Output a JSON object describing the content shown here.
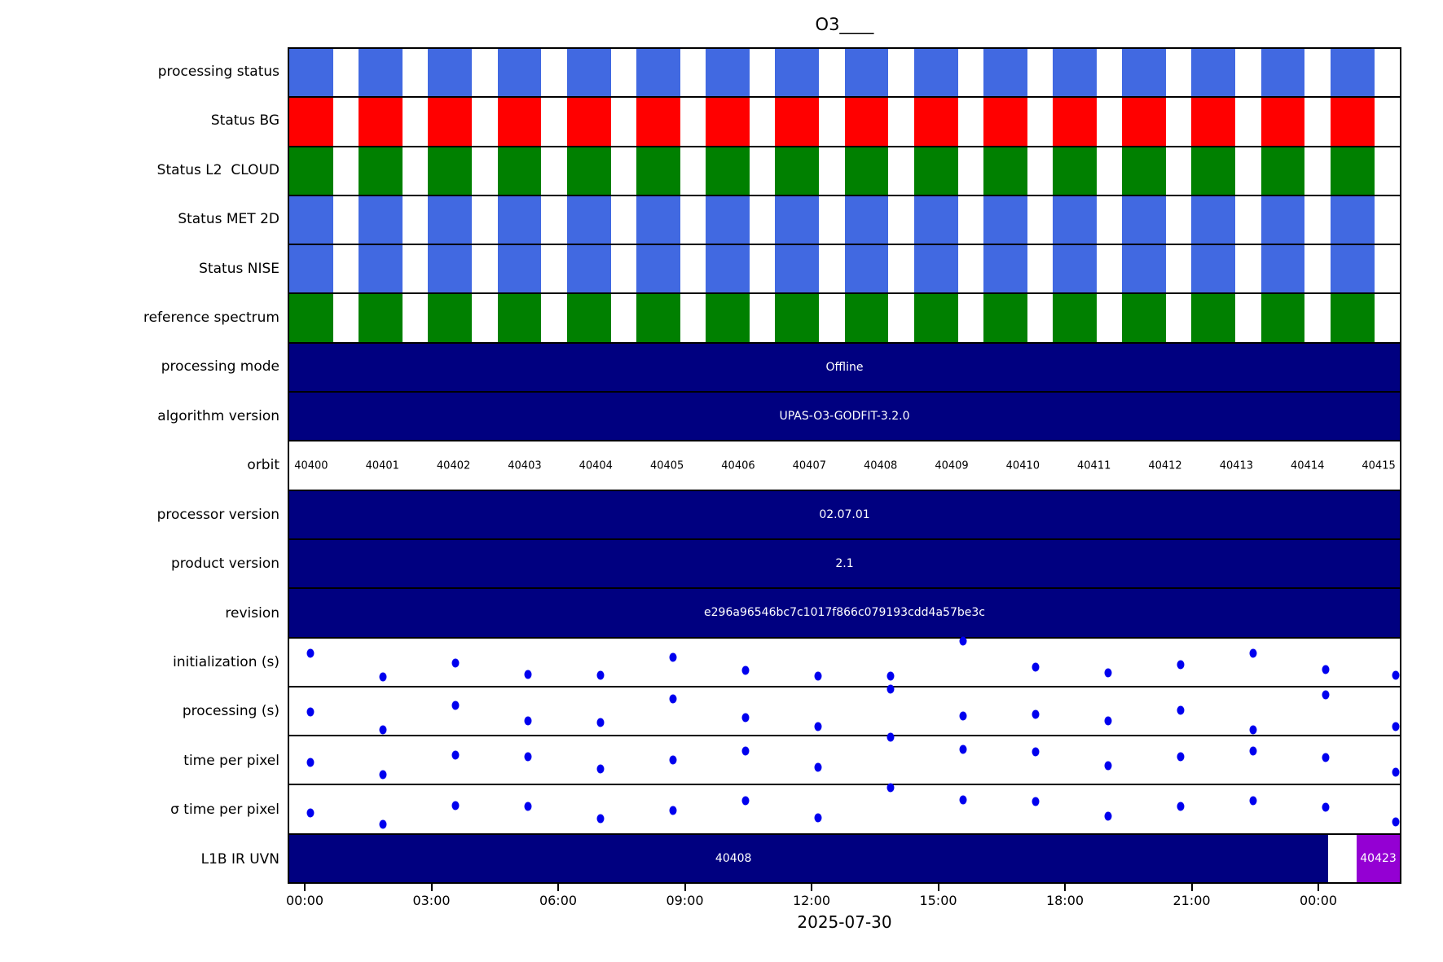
{
  "title": "O3____",
  "colors": {
    "blue_block": "#4169E1",
    "red_block": "#FF0000",
    "green_block": "#008000",
    "navy_bar": "#000080",
    "purple_bar": "#9400D3",
    "dot": "#0000EE",
    "bar_text": "#FFFFFF"
  },
  "rows": [
    {
      "label": "processing status",
      "type": "blocks",
      "color_key": "blue_block"
    },
    {
      "label": "Status BG",
      "type": "blocks",
      "color_key": "red_block"
    },
    {
      "label": "Status L2  CLOUD",
      "type": "blocks",
      "color_key": "green_block"
    },
    {
      "label": "Status MET 2D",
      "type": "blocks",
      "color_key": "blue_block"
    },
    {
      "label": "Status NISE",
      "type": "blocks",
      "color_key": "blue_block"
    },
    {
      "label": "reference spectrum",
      "type": "blocks",
      "color_key": "green_block"
    },
    {
      "label": "processing mode",
      "type": "bar",
      "text": "Offline"
    },
    {
      "label": "algorithm version",
      "type": "bar",
      "text": "UPAS-O3-GODFIT-3.2.0"
    },
    {
      "label": "orbit",
      "type": "orbits"
    },
    {
      "label": "processor version",
      "type": "bar",
      "text": "02.07.01"
    },
    {
      "label": "product version",
      "type": "bar",
      "text": "2.1"
    },
    {
      "label": "revision",
      "type": "bar",
      "text": "e296a96546bc7c1017f866c079193cdd4a57be3c"
    },
    {
      "label": "initialization (s)",
      "type": "scatter",
      "series_index": 0
    },
    {
      "label": "processing (s)",
      "type": "scatter",
      "series_index": 1
    },
    {
      "label": "time per pixel",
      "type": "scatter",
      "series_index": 2
    },
    {
      "label": "σ time per pixel",
      "type": "scatter",
      "series_index": 3
    },
    {
      "label": "L1B IR UVN",
      "type": "l1b",
      "segments": [
        {
          "text": "40408",
          "color_key": "navy_bar",
          "from": 0.0,
          "to": 0.9356,
          "text_at": 0.4
        },
        {
          "text": "",
          "color_key": "",
          "from": 0.9356,
          "to": 0.9612
        },
        {
          "text": "40423",
          "color_key": "purple_bar",
          "from": 0.9612,
          "to": 1.0,
          "text_at": 0.9806
        }
      ]
    }
  ],
  "x_axis": {
    "ticks": [
      "00:00",
      "03:00",
      "06:00",
      "09:00",
      "12:00",
      "15:00",
      "18:00",
      "21:00",
      "00:00"
    ],
    "date_label": "2025-07-30"
  },
  "chart_data": [
    {
      "type": "table",
      "title": "O3____",
      "date": "2025-07-30",
      "x_ticks": [
        "00:00",
        "03:00",
        "06:00",
        "09:00",
        "12:00",
        "15:00",
        "18:00",
        "21:00",
        "00:00"
      ],
      "orbits": [
        40400,
        40401,
        40402,
        40403,
        40404,
        40405,
        40406,
        40407,
        40408,
        40409,
        40410,
        40411,
        40412,
        40413,
        40414,
        40415
      ],
      "status_rows": [
        {
          "name": "processing status",
          "color": "#4169E1",
          "present_for_all_orbits": true
        },
        {
          "name": "Status BG",
          "color": "#FF0000",
          "present_for_all_orbits": true
        },
        {
          "name": "Status L2  CLOUD",
          "color": "#008000",
          "present_for_all_orbits": true
        },
        {
          "name": "Status MET 2D",
          "color": "#4169E1",
          "present_for_all_orbits": true
        },
        {
          "name": "Status NISE",
          "color": "#4169E1",
          "present_for_all_orbits": true
        },
        {
          "name": "reference spectrum",
          "color": "#008000",
          "present_for_all_orbits": true
        }
      ],
      "attribute_rows": {
        "processing mode": "Offline",
        "algorithm version": "UPAS-O3-GODFIT-3.2.0",
        "processor version": "02.07.01",
        "product version": "2.1",
        "revision": "e296a96546bc7c1017f866c079193cdd4a57be3c",
        "L1B IR UVN": [
          "40408",
          "40423"
        ]
      }
    },
    {
      "type": "scatter",
      "x_orbits": [
        40400,
        40401,
        40402,
        40403,
        40404,
        40405,
        40406,
        40407,
        40408,
        40409,
        40410,
        40411,
        40412,
        40413,
        40414,
        40415
      ],
      "y_units": "relative vertical position within row (0 = row top, 1 = row bottom); no numeric y-axis is shown in the figure",
      "series": [
        {
          "name": "initialization (s)",
          "values": [
            0.32,
            0.82,
            0.52,
            0.76,
            0.78,
            0.4,
            0.68,
            0.8,
            0.8,
            0.06,
            0.6,
            0.72,
            0.56,
            0.32,
            0.66,
            0.78
          ]
        },
        {
          "name": "processing (s)",
          "values": [
            0.52,
            0.9,
            0.38,
            0.7,
            0.74,
            0.24,
            0.64,
            0.82,
            0.03,
            0.6,
            0.56,
            0.7,
            0.48,
            0.9,
            0.15,
            0.82
          ]
        },
        {
          "name": "time per pixel",
          "values": [
            0.55,
            0.8,
            0.4,
            0.42,
            0.68,
            0.5,
            0.3,
            0.65,
            0.02,
            0.28,
            0.32,
            0.62,
            0.42,
            0.3,
            0.44,
            0.75
          ]
        },
        {
          "name": "σ time per pixel",
          "values": [
            0.57,
            0.82,
            0.42,
            0.44,
            0.7,
            0.52,
            0.32,
            0.67,
            0.04,
            0.3,
            0.34,
            0.64,
            0.44,
            0.32,
            0.46,
            0.77
          ]
        }
      ]
    }
  ]
}
